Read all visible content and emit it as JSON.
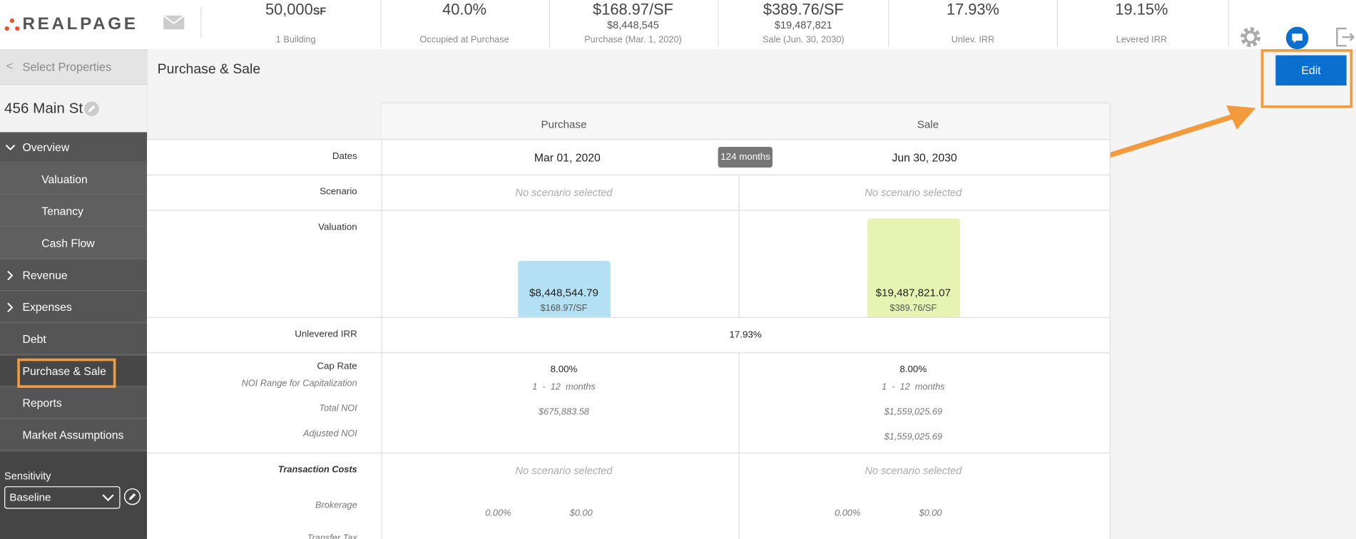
{
  "header": {
    "logo": "REALPAGE",
    "stats": [
      {
        "value": "50,000",
        "unit": "SF",
        "label": "1 Building"
      },
      {
        "value": "40.0%",
        "label": "Occupied at Purchase"
      },
      {
        "value": "$168.97/SF",
        "sub": "$8,448,545",
        "label": "Purchase (Mar. 1, 2020)"
      },
      {
        "value": "$389.76/SF",
        "sub": "$19,487,821",
        "label": "Sale (Jun. 30, 2030)"
      },
      {
        "value": "17.93%",
        "label": "Unlev. IRR"
      },
      {
        "value": "19.15%",
        "label": "Levered IRR"
      }
    ]
  },
  "sidebar": {
    "back": "Select Properties",
    "property": "456 Main St",
    "nav": [
      "Overview",
      "Valuation",
      "Tenancy",
      "Cash Flow",
      "Revenue",
      "Expenses",
      "Debt",
      "Purchase & Sale",
      "Reports",
      "Market Assumptions"
    ],
    "sensitivity_label": "Sensitivity",
    "sensitivity_value": "Baseline"
  },
  "main": {
    "title": "Purchase & Sale",
    "edit_button": "Edit",
    "columns": [
      "Purchase",
      "Sale"
    ],
    "dates": {
      "label": "Dates",
      "purchase": "Mar 01, 2020",
      "duration": "124 months",
      "sale": "Jun 30, 2030"
    },
    "scenario": {
      "label": "Scenario",
      "purchase": "No scenario selected",
      "sale": "No scenario selected"
    },
    "valuation": {
      "label": "Valuation",
      "purchase": {
        "amount": "$8,448,544.79",
        "per_sf": "$168.97/SF"
      },
      "sale": {
        "amount": "$19,487,821.07",
        "per_sf": "$389.76/SF"
      }
    },
    "unlevered_irr": {
      "label": "Unlevered IRR",
      "value": "17.93%"
    },
    "cap_rate": {
      "labels": [
        "Cap Rate",
        "NOI Range for Capitalization",
        "Total NOI",
        "Adjusted NOI"
      ],
      "purchase": {
        "cap_rate": "8.00%",
        "noi_range": "1  -  12  months",
        "total_noi": "$675,883.58"
      },
      "sale": {
        "cap_rate": "8.00%",
        "noi_range": "1  -  12  months",
        "total_noi": "$1,559,025.69",
        "adjusted_noi": "$1,559,025.69"
      }
    },
    "transaction_costs": {
      "label": "Transaction Costs",
      "purchase": "No scenario selected",
      "sale": "No scenario selected",
      "brokerage_label": "Brokerage",
      "purchase_brokerage": {
        "rate": "0.00%",
        "amount": "$0.00"
      },
      "sale_brokerage": {
        "rate": "0.00%",
        "amount": "$0.00"
      }
    },
    "transfer_tax_label": "Transfer Tax"
  }
}
